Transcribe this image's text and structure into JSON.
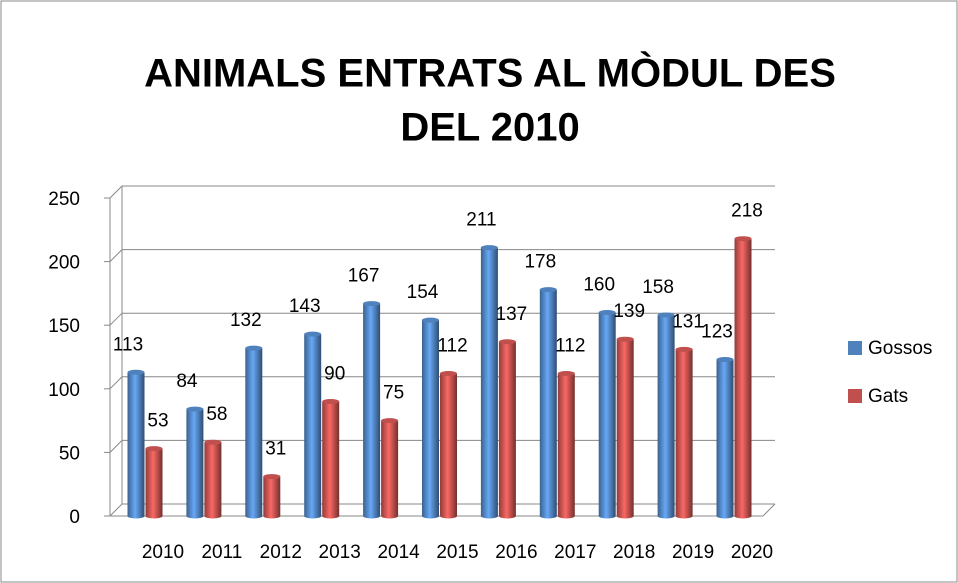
{
  "chart_data": {
    "type": "bar",
    "title_lines": [
      "ANIMALS ENTRATS AL MÒDUL DES",
      "DEL 2010"
    ],
    "categories": [
      "2010",
      "2011",
      "2012",
      "2013",
      "2014",
      "2015",
      "2016",
      "2017",
      "2018",
      "2019",
      "2020"
    ],
    "series": [
      {
        "name": "Gossos",
        "color": "#4f81bd",
        "values": [
          113,
          84,
          132,
          143,
          167,
          154,
          211,
          178,
          160,
          158,
          123
        ]
      },
      {
        "name": "Gats",
        "color": "#c0504d",
        "values": [
          53,
          58,
          31,
          90,
          75,
          112,
          137,
          112,
          139,
          131,
          218
        ]
      }
    ],
    "ylim": [
      0,
      250
    ],
    "yticks": [
      0,
      50,
      100,
      150,
      200,
      250
    ],
    "grid": true,
    "legend": "right"
  }
}
